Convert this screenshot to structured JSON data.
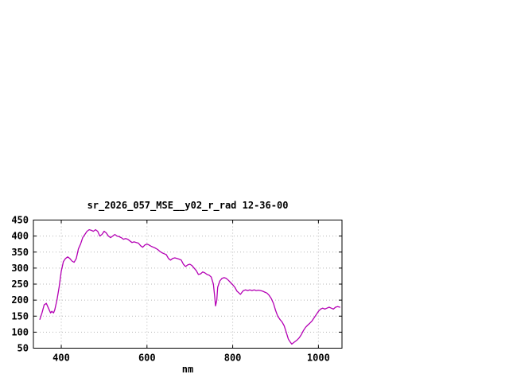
{
  "chart_data": {
    "type": "line",
    "title": "sr_2026_057_MSE__y02_r_rad 12-36-00",
    "xlabel": "nm",
    "ylabel": "",
    "x_range": [
      335,
      1055
    ],
    "y_range": [
      50,
      450
    ],
    "x_ticks": [
      400,
      600,
      800,
      1000
    ],
    "y_ticks": [
      50,
      100,
      150,
      200,
      250,
      300,
      350,
      400,
      450
    ],
    "grid": true,
    "colors": {
      "line": "#b400b4",
      "grid": "#b8b8b8",
      "border": "#000000",
      "text": "#000000",
      "background": "#ffffff"
    },
    "series": [
      {
        "name": "sr_2026_057_MSE__y02_r_rad",
        "x": [
          350,
          355,
          360,
          365,
          370,
          375,
          378,
          382,
          385,
          390,
          395,
          400,
          405,
          410,
          415,
          420,
          425,
          430,
          435,
          440,
          445,
          450,
          455,
          460,
          465,
          470,
          475,
          480,
          485,
          490,
          495,
          500,
          505,
          510,
          515,
          520,
          525,
          530,
          535,
          540,
          545,
          550,
          555,
          560,
          565,
          570,
          575,
          580,
          585,
          590,
          595,
          600,
          605,
          610,
          615,
          620,
          625,
          630,
          635,
          640,
          645,
          650,
          655,
          660,
          665,
          670,
          675,
          680,
          685,
          690,
          695,
          700,
          705,
          710,
          715,
          720,
          725,
          730,
          735,
          740,
          745,
          750,
          755,
          758,
          760,
          763,
          765,
          770,
          775,
          780,
          785,
          790,
          795,
          800,
          805,
          810,
          815,
          818,
          822,
          825,
          830,
          835,
          840,
          845,
          850,
          855,
          860,
          865,
          870,
          875,
          880,
          885,
          890,
          895,
          900,
          905,
          910,
          915,
          920,
          925,
          930,
          935,
          938,
          940,
          945,
          950,
          955,
          960,
          965,
          970,
          975,
          980,
          985,
          990,
          995,
          1000,
          1005,
          1010,
          1015,
          1020,
          1025,
          1030,
          1035,
          1040,
          1045,
          1050
        ],
        "y": [
          140,
          160,
          185,
          190,
          175,
          160,
          165,
          160,
          170,
          200,
          240,
          290,
          320,
          330,
          335,
          330,
          322,
          318,
          330,
          360,
          375,
          395,
          405,
          415,
          420,
          418,
          415,
          420,
          415,
          400,
          405,
          415,
          410,
          400,
          395,
          400,
          405,
          400,
          398,
          395,
          390,
          392,
          390,
          385,
          380,
          382,
          380,
          378,
          370,
          365,
          372,
          375,
          372,
          368,
          365,
          362,
          358,
          352,
          348,
          345,
          342,
          330,
          325,
          330,
          332,
          330,
          328,
          325,
          312,
          305,
          310,
          312,
          308,
          300,
          292,
          280,
          282,
          288,
          285,
          280,
          278,
          272,
          250,
          210,
          182,
          200,
          240,
          260,
          268,
          270,
          268,
          262,
          255,
          248,
          240,
          228,
          222,
          218,
          225,
          230,
          232,
          230,
          232,
          230,
          232,
          230,
          231,
          230,
          228,
          225,
          222,
          215,
          205,
          190,
          168,
          150,
          140,
          132,
          120,
          100,
          78,
          68,
          63,
          65,
          70,
          75,
          82,
          92,
          105,
          115,
          122,
          128,
          135,
          145,
          155,
          165,
          172,
          175,
          172,
          175,
          178,
          175,
          172,
          178,
          180,
          178
        ]
      }
    ]
  }
}
